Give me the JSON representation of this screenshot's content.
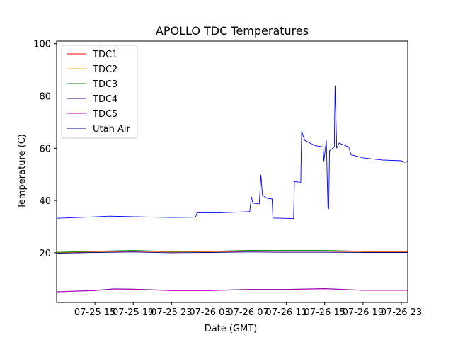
{
  "chart_data": {
    "type": "line",
    "title": "APOLLO TDC Temperatures",
    "xlabel": "Date (GMT)",
    "ylabel": "Temperature (C)",
    "x_unit": "datetime (GMT)",
    "xlim": [
      "2018-07-25 11:00",
      "2018-07-26 23:40"
    ],
    "ylim": [
      1,
      101
    ],
    "x_ticks": [
      {
        "x": "2018-07-25 15:00",
        "label": "07-25 15"
      },
      {
        "x": "2018-07-25 19:00",
        "label": "07-25 19"
      },
      {
        "x": "2018-07-25 23:00",
        "label": "07-25 23"
      },
      {
        "x": "2018-07-26 03:00",
        "label": "07-26 03"
      },
      {
        "x": "2018-07-26 07:00",
        "label": "07-26 07"
      },
      {
        "x": "2018-07-26 11:00",
        "label": "07-26 11"
      },
      {
        "x": "2018-07-26 15:00",
        "label": "07-26 15"
      },
      {
        "x": "2018-07-26 19:00",
        "label": "07-26 19"
      },
      {
        "x": "2018-07-26 23:00",
        "label": "07-26 23"
      }
    ],
    "y_ticks": [
      20,
      40,
      60,
      80,
      100
    ],
    "grid": false,
    "legend_position": "top-left",
    "series": [
      {
        "name": "TDC1",
        "color": "#ff0000",
        "points": [
          [
            "2018-07-25 11:00",
            20.0
          ],
          [
            "2018-07-25 15:00",
            20.4
          ],
          [
            "2018-07-25 19:00",
            20.6
          ],
          [
            "2018-07-25 23:00",
            20.3
          ],
          [
            "2018-07-26 03:00",
            20.4
          ],
          [
            "2018-07-26 07:00",
            20.6
          ],
          [
            "2018-07-26 11:00",
            20.6
          ],
          [
            "2018-07-26 15:00",
            20.6
          ],
          [
            "2018-07-26 19:00",
            20.4
          ],
          [
            "2018-07-26 23:40",
            20.4
          ]
        ]
      },
      {
        "name": "TDC2",
        "color": "#ffc000",
        "points": [
          [
            "2018-07-25 11:00",
            20.1
          ],
          [
            "2018-07-25 15:00",
            20.5
          ],
          [
            "2018-07-25 19:00",
            20.7
          ],
          [
            "2018-07-25 23:00",
            20.4
          ],
          [
            "2018-07-26 03:00",
            20.5
          ],
          [
            "2018-07-26 07:00",
            20.7
          ],
          [
            "2018-07-26 11:00",
            20.7
          ],
          [
            "2018-07-26 15:00",
            20.7
          ],
          [
            "2018-07-26 19:00",
            20.5
          ],
          [
            "2018-07-26 23:40",
            20.5
          ]
        ]
      },
      {
        "name": "TDC3",
        "color": "#008000",
        "points": [
          [
            "2018-07-25 11:00",
            20.2
          ],
          [
            "2018-07-25 15:00",
            20.6
          ],
          [
            "2018-07-25 19:00",
            20.9
          ],
          [
            "2018-07-25 23:00",
            20.5
          ],
          [
            "2018-07-26 03:00",
            20.6
          ],
          [
            "2018-07-26 07:00",
            20.9
          ],
          [
            "2018-07-26 11:00",
            20.9
          ],
          [
            "2018-07-26 15:00",
            20.9
          ],
          [
            "2018-07-26 19:00",
            20.6
          ],
          [
            "2018-07-26 23:40",
            20.6
          ]
        ]
      },
      {
        "name": "TDC4",
        "color": "#4b0082",
        "points": [
          [
            "2018-07-25 11:00",
            5.1
          ],
          [
            "2018-07-25 15:00",
            5.6
          ],
          [
            "2018-07-25 17:00",
            6.2
          ],
          [
            "2018-07-25 19:00",
            6.1
          ],
          [
            "2018-07-25 23:00",
            5.6
          ],
          [
            "2018-07-26 03:00",
            5.6
          ],
          [
            "2018-07-26 07:00",
            6.0
          ],
          [
            "2018-07-26 11:00",
            6.0
          ],
          [
            "2018-07-26 15:00",
            6.3
          ],
          [
            "2018-07-26 19:00",
            5.7
          ],
          [
            "2018-07-26 23:40",
            5.7
          ]
        ]
      },
      {
        "name": "TDC5",
        "color": "#c000c0",
        "points": [
          [
            "2018-07-25 11:00",
            5.0
          ],
          [
            "2018-07-25 15:00",
            5.5
          ],
          [
            "2018-07-25 17:00",
            6.1
          ],
          [
            "2018-07-25 19:00",
            6.0
          ],
          [
            "2018-07-25 23:00",
            5.5
          ],
          [
            "2018-07-26 03:00",
            5.5
          ],
          [
            "2018-07-26 07:00",
            5.9
          ],
          [
            "2018-07-26 11:00",
            5.9
          ],
          [
            "2018-07-26 15:00",
            6.2
          ],
          [
            "2018-07-26 19:00",
            5.6
          ],
          [
            "2018-07-26 23:40",
            5.6
          ]
        ]
      },
      {
        "name": "Utah Air",
        "color": "#000080",
        "points": [
          [
            "2018-07-25 11:00",
            19.8
          ],
          [
            "2018-07-25 15:00",
            20.1
          ],
          [
            "2018-07-25 19:00",
            20.3
          ],
          [
            "2018-07-25 23:00",
            20.0
          ],
          [
            "2018-07-26 03:00",
            20.1
          ],
          [
            "2018-07-26 07:00",
            20.3
          ],
          [
            "2018-07-26 11:00",
            20.2
          ],
          [
            "2018-07-26 15:00",
            20.2
          ],
          [
            "2018-07-26 19:00",
            20.1
          ],
          [
            "2018-07-26 23:40",
            20.1
          ]
        ]
      },
      {
        "name": "",
        "color": "#0000ff",
        "points": [
          [
            "2018-07-25 11:00",
            33.2
          ],
          [
            "2018-07-25 14:00",
            33.6
          ],
          [
            "2018-07-25 16:30",
            34.0
          ],
          [
            "2018-07-25 19:00",
            33.8
          ],
          [
            "2018-07-25 23:00",
            33.5
          ],
          [
            "2018-07-26 01:30",
            33.6
          ],
          [
            "2018-07-26 01:40",
            35.3
          ],
          [
            "2018-07-26 04:00",
            35.3
          ],
          [
            "2018-07-26 07:00",
            35.7
          ],
          [
            "2018-07-26 07:10",
            35.7
          ],
          [
            "2018-07-26 07:20",
            41.5
          ],
          [
            "2018-07-26 07:30",
            39.0
          ],
          [
            "2018-07-26 08:10",
            38.7
          ],
          [
            "2018-07-26 08:20",
            49.8
          ],
          [
            "2018-07-26 08:30",
            42.0
          ],
          [
            "2018-07-26 09:00",
            40.8
          ],
          [
            "2018-07-26 09:30",
            40.6
          ],
          [
            "2018-07-26 09:35",
            33.3
          ],
          [
            "2018-07-26 11:45",
            33.1
          ],
          [
            "2018-07-26 11:50",
            47.2
          ],
          [
            "2018-07-26 12:30",
            47.0
          ],
          [
            "2018-07-26 12:35",
            66.5
          ],
          [
            "2018-07-26 12:55",
            63.0
          ],
          [
            "2018-07-26 14:00",
            61.0
          ],
          [
            "2018-07-26 14:50",
            60.5
          ],
          [
            "2018-07-26 14:55",
            55.0
          ],
          [
            "2018-07-26 15:10",
            63.0
          ],
          [
            "2018-07-26 15:20",
            37.5
          ],
          [
            "2018-07-26 15:25",
            37.0
          ],
          [
            "2018-07-26 15:30",
            59.0
          ],
          [
            "2018-07-26 16:00",
            60.5
          ],
          [
            "2018-07-26 16:05",
            84.0
          ],
          [
            "2018-07-26 16:15",
            60.0
          ],
          [
            "2018-07-26 16:30",
            62.0
          ],
          [
            "2018-07-26 17:30",
            60.5
          ],
          [
            "2018-07-26 17:45",
            57.5
          ],
          [
            "2018-07-26 19:00",
            56.3
          ],
          [
            "2018-07-26 21:00",
            55.5
          ],
          [
            "2018-07-26 23:00",
            55.2
          ],
          [
            "2018-07-26 23:20",
            54.6
          ],
          [
            "2018-07-26 23:40",
            55.0
          ]
        ]
      }
    ]
  }
}
